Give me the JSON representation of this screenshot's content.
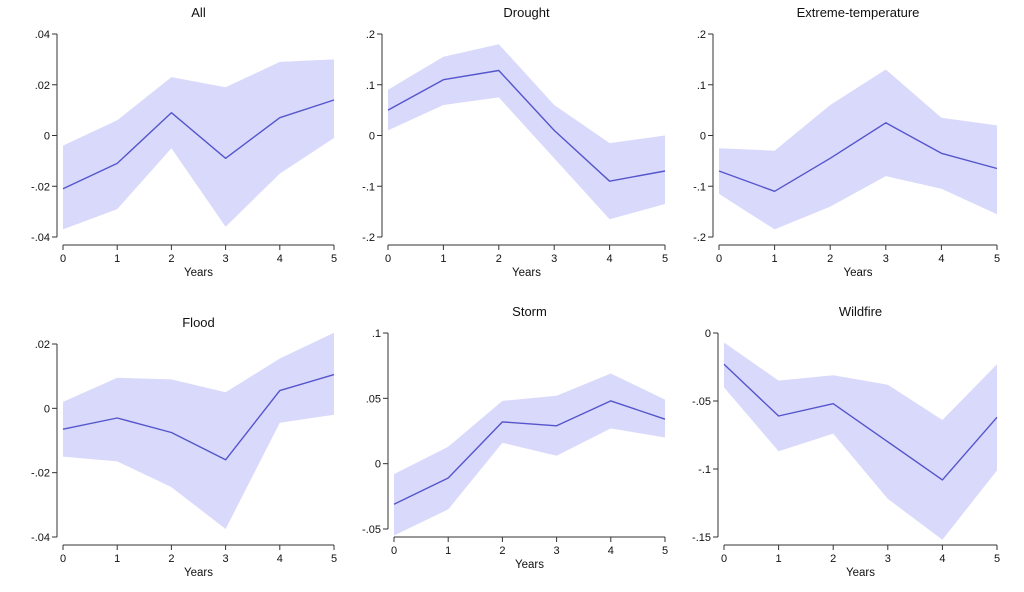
{
  "colors": {
    "line": "#5555cc",
    "band": "#d9d9fb",
    "axis": "#333333"
  },
  "chart_data": [
    {
      "type": "area",
      "title": "All",
      "xlabel": "Years",
      "ylabel": "",
      "x": [
        0,
        1,
        2,
        3,
        4,
        5
      ],
      "xticks": [
        "0",
        "1",
        "2",
        "3",
        "4",
        "5"
      ],
      "ylim": [
        -0.04,
        0.04
      ],
      "yticks": [
        -0.04,
        -0.02,
        0,
        0.02,
        0.04
      ],
      "ytick_labels": [
        "-.04",
        "-.02",
        "0",
        ".02",
        ".04"
      ],
      "series": [
        {
          "estimate": [
            -0.021,
            -0.011,
            0.009,
            -0.009,
            0.007,
            0.014
          ],
          "lower": [
            -0.037,
            -0.029,
            -0.005,
            -0.036,
            -0.015,
            -0.001
          ],
          "upper": [
            -0.004,
            0.006,
            0.023,
            0.019,
            0.029,
            0.03
          ]
        }
      ]
    },
    {
      "type": "area",
      "title": "Drought",
      "xlabel": "Years",
      "ylabel": "",
      "x": [
        0,
        1,
        2,
        3,
        4,
        5
      ],
      "xticks": [
        "0",
        "1",
        "2",
        "3",
        "4",
        "5"
      ],
      "ylim": [
        -0.2,
        0.2
      ],
      "yticks": [
        -0.2,
        -0.1,
        0,
        0.1,
        0.2
      ],
      "ytick_labels": [
        "-.2",
        "-.1",
        "0",
        ".1",
        ".2"
      ],
      "series": [
        {
          "estimate": [
            0.05,
            0.11,
            0.128,
            0.01,
            -0.09,
            -0.07
          ],
          "lower": [
            0.01,
            0.06,
            0.075,
            -0.045,
            -0.165,
            -0.135
          ],
          "upper": [
            0.09,
            0.155,
            0.18,
            0.06,
            -0.015,
            0.0
          ]
        }
      ]
    },
    {
      "type": "area",
      "title": "Extreme-temperature",
      "xlabel": "Years",
      "ylabel": "",
      "x": [
        0,
        1,
        2,
        3,
        4,
        5
      ],
      "xticks": [
        "0",
        "1",
        "2",
        "3",
        "4",
        "5"
      ],
      "ylim": [
        -0.2,
        0.2
      ],
      "yticks": [
        -0.2,
        -0.1,
        0,
        0.1,
        0.2
      ],
      "ytick_labels": [
        "-.2",
        "-.1",
        "0",
        ".1",
        ".2"
      ],
      "series": [
        {
          "estimate": [
            -0.07,
            -0.11,
            -0.045,
            0.025,
            -0.035,
            -0.065
          ],
          "lower": [
            -0.115,
            -0.185,
            -0.14,
            -0.08,
            -0.105,
            -0.155
          ],
          "upper": [
            -0.025,
            -0.03,
            0.06,
            0.13,
            0.035,
            0.02
          ]
        }
      ]
    },
    {
      "type": "area",
      "title": "Flood",
      "xlabel": "Years",
      "ylabel": "",
      "x": [
        0,
        1,
        2,
        3,
        4,
        5
      ],
      "xticks": [
        "0",
        "1",
        "2",
        "3",
        "4",
        "5"
      ],
      "ylim": [
        -0.04,
        0.02
      ],
      "yticks": [
        -0.04,
        -0.02,
        0,
        0.02
      ],
      "ytick_labels": [
        "-.04",
        "-.02",
        "0",
        ".02"
      ],
      "series": [
        {
          "estimate": [
            -0.0065,
            -0.003,
            -0.0075,
            -0.016,
            0.0055,
            0.0105
          ],
          "lower": [
            -0.015,
            -0.0165,
            -0.0245,
            -0.0375,
            -0.0045,
            -0.002
          ],
          "upper": [
            0.002,
            0.0095,
            0.009,
            0.005,
            0.0155,
            0.0235
          ]
        }
      ]
    },
    {
      "type": "area",
      "title": "Storm",
      "xlabel": "Years",
      "ylabel": "",
      "x": [
        0,
        1,
        2,
        3,
        4,
        5
      ],
      "xticks": [
        "0",
        "1",
        "2",
        "3",
        "4",
        "5"
      ],
      "ylim": [
        -0.05,
        0.1
      ],
      "yticks": [
        -0.05,
        0,
        0.05,
        0.1
      ],
      "ytick_labels": [
        "-.05",
        "0",
        ".05",
        ".1"
      ],
      "series": [
        {
          "estimate": [
            -0.031,
            -0.011,
            0.032,
            0.029,
            0.048,
            0.034
          ],
          "lower": [
            -0.055,
            -0.035,
            0.016,
            0.006,
            0.027,
            0.02
          ],
          "upper": [
            -0.008,
            0.013,
            0.048,
            0.052,
            0.069,
            0.049
          ]
        }
      ]
    },
    {
      "type": "area",
      "title": "Wildfire",
      "xlabel": "Years",
      "ylabel": "",
      "x": [
        0,
        1,
        2,
        3,
        4,
        5
      ],
      "xticks": [
        "0",
        "1",
        "2",
        "3",
        "4",
        "5"
      ],
      "ylim": [
        -0.15,
        0
      ],
      "yticks": [
        -0.15,
        -0.1,
        -0.05,
        0
      ],
      "ytick_labels": [
        "-.15",
        "-.1",
        "-.05",
        "0"
      ],
      "series": [
        {
          "estimate": [
            -0.023,
            -0.061,
            -0.052,
            -0.08,
            -0.108,
            -0.062
          ],
          "lower": [
            -0.04,
            -0.087,
            -0.074,
            -0.122,
            -0.152,
            -0.101
          ],
          "upper": [
            -0.007,
            -0.035,
            -0.031,
            -0.038,
            -0.064,
            -0.023
          ]
        }
      ]
    }
  ]
}
